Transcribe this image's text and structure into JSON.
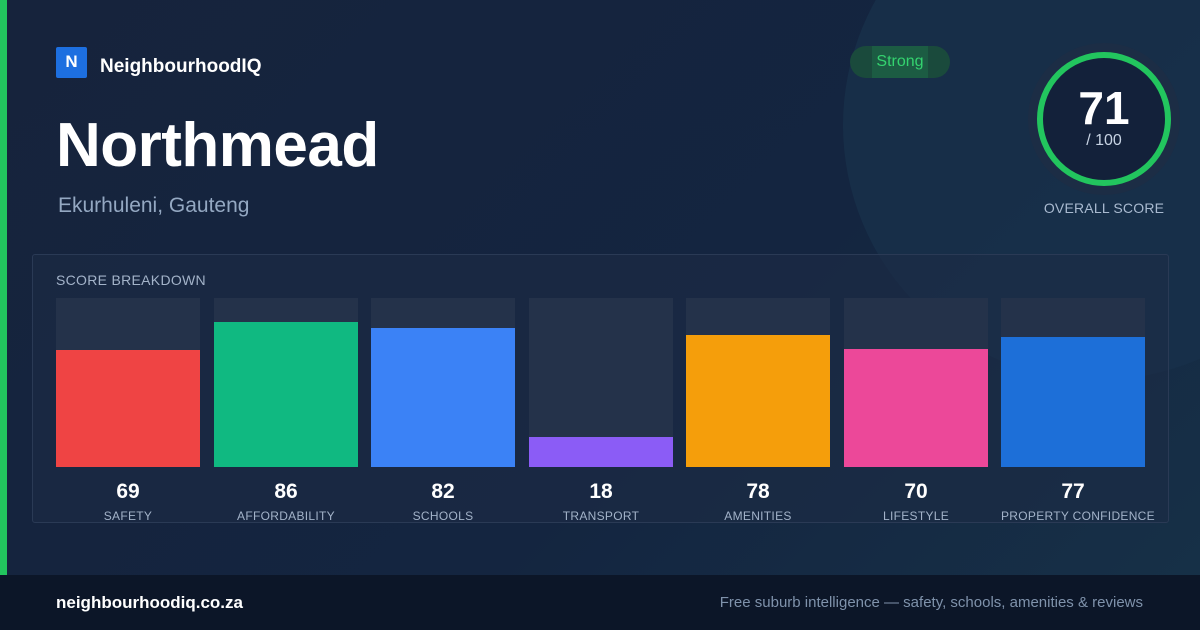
{
  "brand": {
    "logo_letter": "N",
    "name": "NeighbourhoodIQ"
  },
  "suburb": {
    "name": "Northmead",
    "location": "Ekurhuleni, Gauteng"
  },
  "rating": {
    "label": "Strong"
  },
  "overall": {
    "score": "71",
    "max": "/ 100",
    "caption": "OVERALL SCORE",
    "ring_color": "#22c55e"
  },
  "breakdown": {
    "title": "SCORE BREAKDOWN",
    "max": 100,
    "items": [
      {
        "label": "SAFETY",
        "value": 69,
        "display": "69",
        "color": "#ef4444"
      },
      {
        "label": "AFFORDABILITY",
        "value": 86,
        "display": "86",
        "color": "#10b981"
      },
      {
        "label": "SCHOOLS",
        "value": 82,
        "display": "82",
        "color": "#3b82f6"
      },
      {
        "label": "TRANSPORT",
        "value": 18,
        "display": "18",
        "color": "#8b5cf6"
      },
      {
        "label": "AMENITIES",
        "value": 78,
        "display": "78",
        "color": "#f59e0b"
      },
      {
        "label": "LIFESTYLE",
        "value": 70,
        "display": "70",
        "color": "#ec4899"
      },
      {
        "label": "PROPERTY CONFIDENCE",
        "value": 77,
        "display": "77",
        "color": "#1d6fd8"
      }
    ]
  },
  "footer": {
    "domain": "neighbourhoodiq.co.za",
    "tagline": "Free suburb intelligence — safety, schools, amenities & reviews"
  }
}
